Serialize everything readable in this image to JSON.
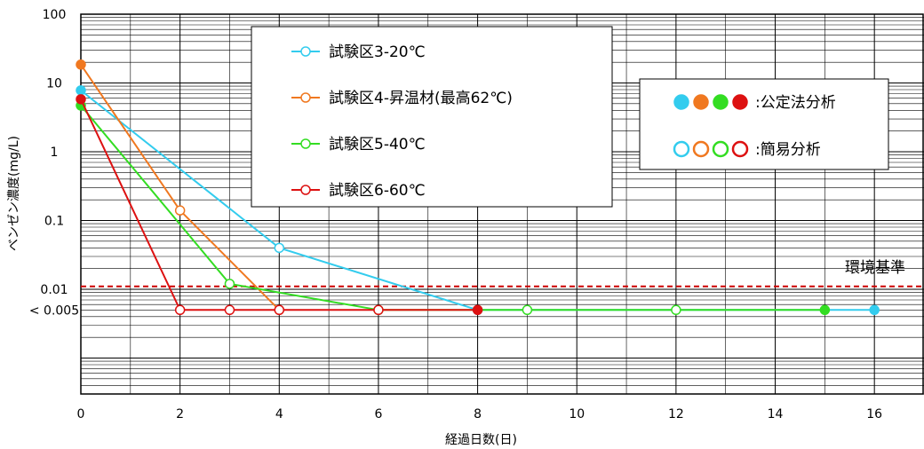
{
  "chart_data": {
    "type": "line",
    "xlabel": "経過日数(日)",
    "ylabel": "ベンゼン濃度(mg/L)",
    "y_scale": "log",
    "xlim": [
      0,
      17
    ],
    "ylim": [
      0.0003,
      100
    ],
    "x_ticks": [
      0,
      2,
      4,
      6,
      8,
      10,
      12,
      14,
      16
    ],
    "y_ticks": [
      {
        "value": 100,
        "label": "100"
      },
      {
        "value": 10,
        "label": "10"
      },
      {
        "value": 1,
        "label": "1"
      },
      {
        "value": 0.1,
        "label": "0.1"
      },
      {
        "value": 0.01,
        "label": "0.01"
      },
      {
        "value": 0.005,
        "label": "< 0.005"
      }
    ],
    "grid": true,
    "reference_line": {
      "value": 0.011,
      "label": "環境基準",
      "color": "#cc0000"
    },
    "series": [
      {
        "name": "試験区3-20℃",
        "color": "#33ccee",
        "points": [
          {
            "x": 0,
            "y": 7.8,
            "filled": true
          },
          {
            "x": 4,
            "y": 0.04,
            "filled": false
          },
          {
            "x": 8,
            "y": 0.005,
            "filled": false
          },
          {
            "x": 16,
            "y": 0.005,
            "filled": true
          }
        ]
      },
      {
        "name": "試験区4-昇温材(最高62℃)",
        "color": "#f07820",
        "points": [
          {
            "x": 0,
            "y": 18.5,
            "filled": true
          },
          {
            "x": 2,
            "y": 0.14,
            "filled": false
          },
          {
            "x": 4,
            "y": 0.005,
            "filled": false
          }
        ]
      },
      {
        "name": "試験区5-40℃",
        "color": "#33dd22",
        "points": [
          {
            "x": 0,
            "y": 4.7,
            "filled": true
          },
          {
            "x": 3,
            "y": 0.012,
            "filled": false
          },
          {
            "x": 6,
            "y": 0.005,
            "filled": false
          },
          {
            "x": 9,
            "y": 0.005,
            "filled": false
          },
          {
            "x": 12,
            "y": 0.005,
            "filled": false
          },
          {
            "x": 15,
            "y": 0.005,
            "filled": true
          }
        ]
      },
      {
        "name": "試験区6-60℃",
        "color": "#dd1111",
        "points": [
          {
            "x": 0,
            "y": 5.8,
            "filled": true
          },
          {
            "x": 2,
            "y": 0.005,
            "filled": false
          },
          {
            "x": 3,
            "y": 0.005,
            "filled": false
          },
          {
            "x": 4,
            "y": 0.005,
            "filled": false
          },
          {
            "x": 6,
            "y": 0.005,
            "filled": false
          },
          {
            "x": 8,
            "y": 0.005,
            "filled": true
          }
        ]
      }
    ],
    "legend_position": "top-center",
    "marker_note": {
      "filled_label": ":公定法分析",
      "open_label": ":簡易分析",
      "position": "top-right"
    }
  }
}
